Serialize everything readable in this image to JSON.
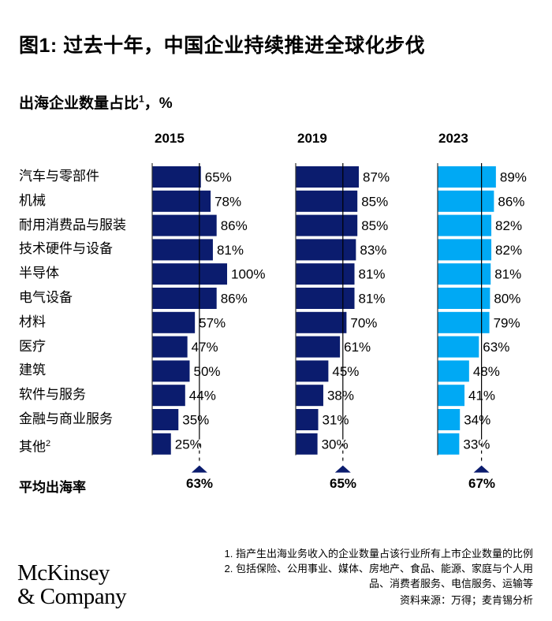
{
  "title": "图1: 过去十年，中国企业持续推进全球化步伐",
  "subtitle": "出海企业数量占比",
  "subtitle_sup": "1",
  "subtitle_unit": "，%",
  "chart_data": {
    "type": "bar",
    "orientation": "horizontal",
    "categories": [
      "汽车与零部件",
      "机械",
      "耐用消费品与服装",
      "技术硬件与设备",
      "半导体",
      "电气设备",
      "材料",
      "医疗",
      "建筑",
      "软件与服务",
      "金融与商业服务",
      "其他"
    ],
    "category_superscripts": {
      "11": "2"
    },
    "series": [
      {
        "name": "2015",
        "values": [
          65,
          78,
          86,
          81,
          100,
          86,
          57,
          47,
          50,
          44,
          35,
          25
        ],
        "color": "#0b1c6e",
        "average": 63
      },
      {
        "name": "2019",
        "values": [
          87,
          85,
          85,
          83,
          81,
          81,
          70,
          61,
          45,
          38,
          31,
          30
        ],
        "color": "#0b1c6e",
        "average": 65
      },
      {
        "name": "2023",
        "values": [
          89,
          86,
          82,
          82,
          81,
          80,
          79,
          63,
          48,
          41,
          34,
          33
        ],
        "color": "#00a9f4",
        "average": 67
      }
    ],
    "value_suffix": "%",
    "average_label": "平均出海率",
    "average_labels": [
      "63%",
      "65%",
      "67%"
    ],
    "average_marker_color": "#0b1c6e"
  },
  "footnotes": [
    "1.  指产生出海业务收入的企业数量占该行业所有上市企业数量的比例",
    "2.  包括保险、公用事业、媒体、房地产、食品、能源、家庭与个人用",
    "品、消费者服务、电信服务、运输等"
  ],
  "source": "资料来源：万得；麦肯锡分析",
  "logo": {
    "line1": "McKinsey",
    "line2": "& Company"
  }
}
